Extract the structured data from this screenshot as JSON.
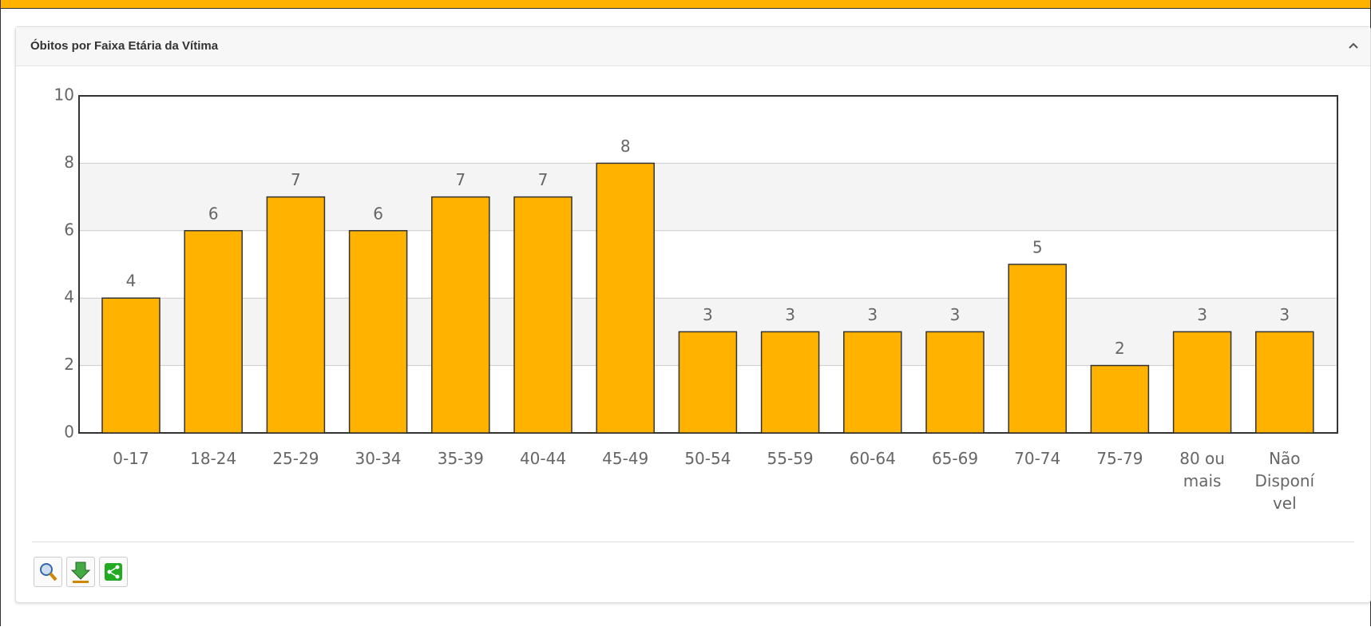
{
  "title": "Óbitos por Faixa Etária da Vítima",
  "chart_data": {
    "type": "bar",
    "categories": [
      "0-17",
      "18-24",
      "25-29",
      "30-34",
      "35-39",
      "40-44",
      "45-49",
      "50-54",
      "55-59",
      "60-64",
      "65-69",
      "70-74",
      "75-79",
      "80 ou mais",
      "Não Disponível"
    ],
    "values": [
      4,
      6,
      7,
      6,
      7,
      7,
      8,
      3,
      3,
      3,
      3,
      5,
      2,
      3,
      3
    ],
    "color": "#ffb300",
    "ylim": [
      0,
      10
    ],
    "yticks": [
      0,
      2,
      4,
      6,
      8,
      10
    ],
    "grid": true
  }
}
